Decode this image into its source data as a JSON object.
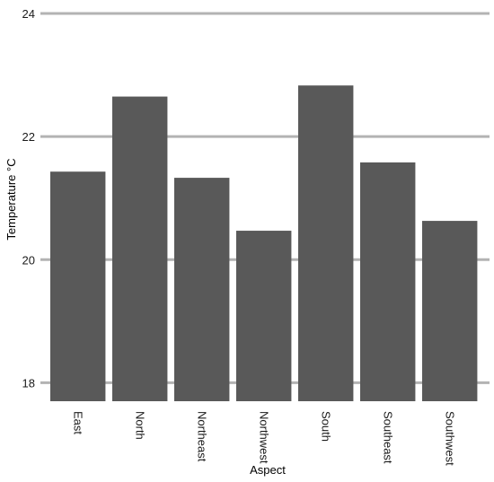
{
  "chart_data": {
    "type": "bar",
    "title": "",
    "xlabel": "Aspect",
    "ylabel": "Temperature °C",
    "categories": [
      "East",
      "North",
      "Northeast",
      "Northwest",
      "South",
      "Southeast",
      "Southwest"
    ],
    "values": [
      21.43,
      22.65,
      21.33,
      20.47,
      22.83,
      21.58,
      20.63
    ],
    "ylim": [
      17.7,
      24.0
    ],
    "yticks": [
      18,
      20,
      22,
      24
    ],
    "grid": "horizontal major lines only",
    "legend": "none",
    "colors": {
      "bar": "#595959",
      "grid": "#b3b3b3",
      "text": "#1a1a1a",
      "background": "#ffffff"
    }
  }
}
